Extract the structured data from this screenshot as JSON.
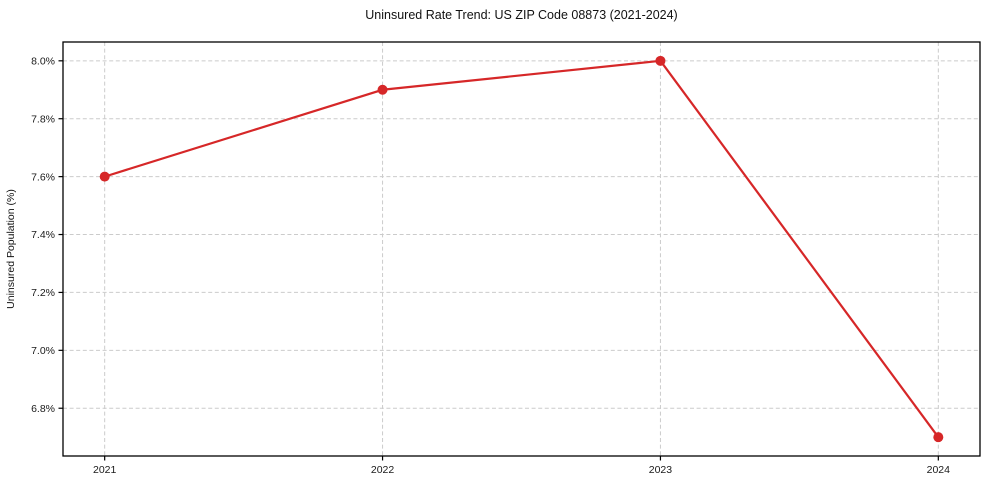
{
  "chart_data": {
    "type": "line",
    "title": "Uninsured Rate Trend: US ZIP Code 08873 (2021-2024)",
    "xlabel": "",
    "ylabel": "Uninsured Population (%)",
    "x": [
      2021,
      2022,
      2023,
      2024
    ],
    "values": [
      7.6,
      7.9,
      8.0,
      6.7
    ],
    "xtick_labels": [
      "2021",
      "2022",
      "2023",
      "2024"
    ],
    "yticks": [
      6.8,
      7.0,
      7.2,
      7.4,
      7.6,
      7.8,
      8.0
    ],
    "ytick_labels": [
      "6.8%",
      "7.0%",
      "7.2%",
      "7.4%",
      "7.6%",
      "7.8%",
      "8.0%"
    ],
    "xlim": [
      2020.85,
      2024.15
    ],
    "ylim": [
      6.635,
      8.065
    ],
    "grid": "dashed-both-axes",
    "legend": "none",
    "line_color": "#d62728",
    "marker": "circle",
    "colors": {
      "grid": "#cbcbcb",
      "spine": "#000000",
      "text": "#1a1a1a",
      "background": "#ffffff"
    }
  }
}
